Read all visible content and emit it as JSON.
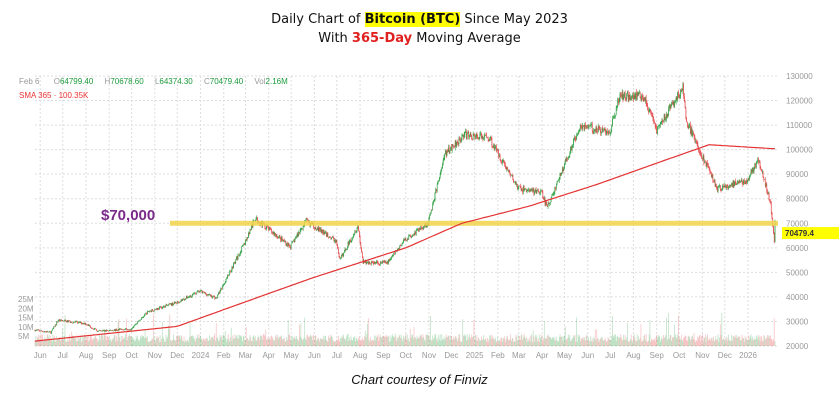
{
  "title": {
    "line1_pre": "Daily Chart of ",
    "line1_hl": "Bitcoin (BTC)",
    "line1_post": " Since May 2023",
    "line2_pre": "With ",
    "line2_red": "365-Day",
    "line2_post": " Moving Average"
  },
  "info": {
    "date": "Feb 6",
    "o_label": "O",
    "open": "64799.40",
    "h_label": "H",
    "high": "70678.60",
    "l_label": "L",
    "low": "64374.30",
    "c_label": "C",
    "close": "70479.40",
    "vol_label": "Vol",
    "vol": "2.16M",
    "sma_label": "SMA 365",
    "sma_value": "100.35K"
  },
  "annotation": "$70,000",
  "last_price_label": "70479.4",
  "courtesy": "Chart courtesy of Finviz",
  "colors": {
    "up": "#2ea043",
    "down": "#e5474a",
    "sma": "#e33333",
    "highlight": "#f2d44a",
    "price_tag": "#ffff00"
  },
  "chart_data": {
    "type": "candlestick",
    "ylim": [
      20000,
      130000
    ],
    "yticks": [
      "130000",
      "120000",
      "110000",
      "100000",
      "90000",
      "80000",
      "70000",
      "60000",
      "50000",
      "40000",
      "30000",
      "20000"
    ],
    "volume_ticks": [
      "25M",
      "20M",
      "15M",
      "10M",
      "5M"
    ],
    "xticks": [
      "Jun",
      "Jul",
      "Aug",
      "Sep",
      "Oct",
      "Nov",
      "Dec",
      "2024",
      "Feb",
      "Mar",
      "Apr",
      "May",
      "Jun",
      "Jul",
      "Aug",
      "Sep",
      "Oct",
      "Nov",
      "Dec",
      "2025",
      "Feb",
      "Mar",
      "Apr",
      "May",
      "Jun",
      "Jul",
      "Aug",
      "Sep",
      "Oct",
      "Nov",
      "Dec",
      "2026"
    ],
    "horizontal_line": 70000,
    "price_path": [
      [
        "2023-05-25",
        26500
      ],
      [
        "2023-06-15",
        25500
      ],
      [
        "2023-06-25",
        30500
      ],
      [
        "2023-07-31",
        29200
      ],
      [
        "2023-08-17",
        26000
      ],
      [
        "2023-09-30",
        27000
      ],
      [
        "2023-10-23",
        34000
      ],
      [
        "2023-11-30",
        37700
      ],
      [
        "2023-12-31",
        42300
      ],
      [
        "2024-01-22",
        39500
      ],
      [
        "2024-02-29",
        62000
      ],
      [
        "2024-03-14",
        72000
      ],
      [
        "2024-04-30",
        60500
      ],
      [
        "2024-05-21",
        71000
      ],
      [
        "2024-06-30",
        62700
      ],
      [
        "2024-07-05",
        55000
      ],
      [
        "2024-07-29",
        69000
      ],
      [
        "2024-08-05",
        54000
      ],
      [
        "2024-09-06",
        53900
      ],
      [
        "2024-09-30",
        63300
      ],
      [
        "2024-10-31",
        70200
      ],
      [
        "2024-11-22",
        98000
      ],
      [
        "2024-12-17",
        106000
      ],
      [
        "2025-01-20",
        105000
      ],
      [
        "2025-02-28",
        84300
      ],
      [
        "2025-03-31",
        82500
      ],
      [
        "2025-04-08",
        76300
      ],
      [
        "2025-05-22",
        110000
      ],
      [
        "2025-06-30",
        107000
      ],
      [
        "2025-07-14",
        122000
      ],
      [
        "2025-08-14",
        122000
      ],
      [
        "2025-09-01",
        108000
      ],
      [
        "2025-10-06",
        125000
      ],
      [
        "2025-10-10",
        112000
      ],
      [
        "2025-11-21",
        84000
      ],
      [
        "2025-12-31",
        87500
      ],
      [
        "2026-01-14",
        96000
      ],
      [
        "2026-01-31",
        78500
      ],
      [
        "2026-02-05",
        63000
      ],
      [
        "2026-02-06",
        70479
      ]
    ],
    "sma365": [
      [
        "2023-05-25",
        22000
      ],
      [
        "2023-12-01",
        28000
      ],
      [
        "2024-03-01",
        38000
      ],
      [
        "2024-06-01",
        48000
      ],
      [
        "2024-10-01",
        60000
      ],
      [
        "2024-12-15",
        70000
      ],
      [
        "2025-03-15",
        77000
      ],
      [
        "2025-06-15",
        86000
      ],
      [
        "2025-09-15",
        96000
      ],
      [
        "2025-11-10",
        102000
      ],
      [
        "2026-02-06",
        100350
      ]
    ]
  }
}
